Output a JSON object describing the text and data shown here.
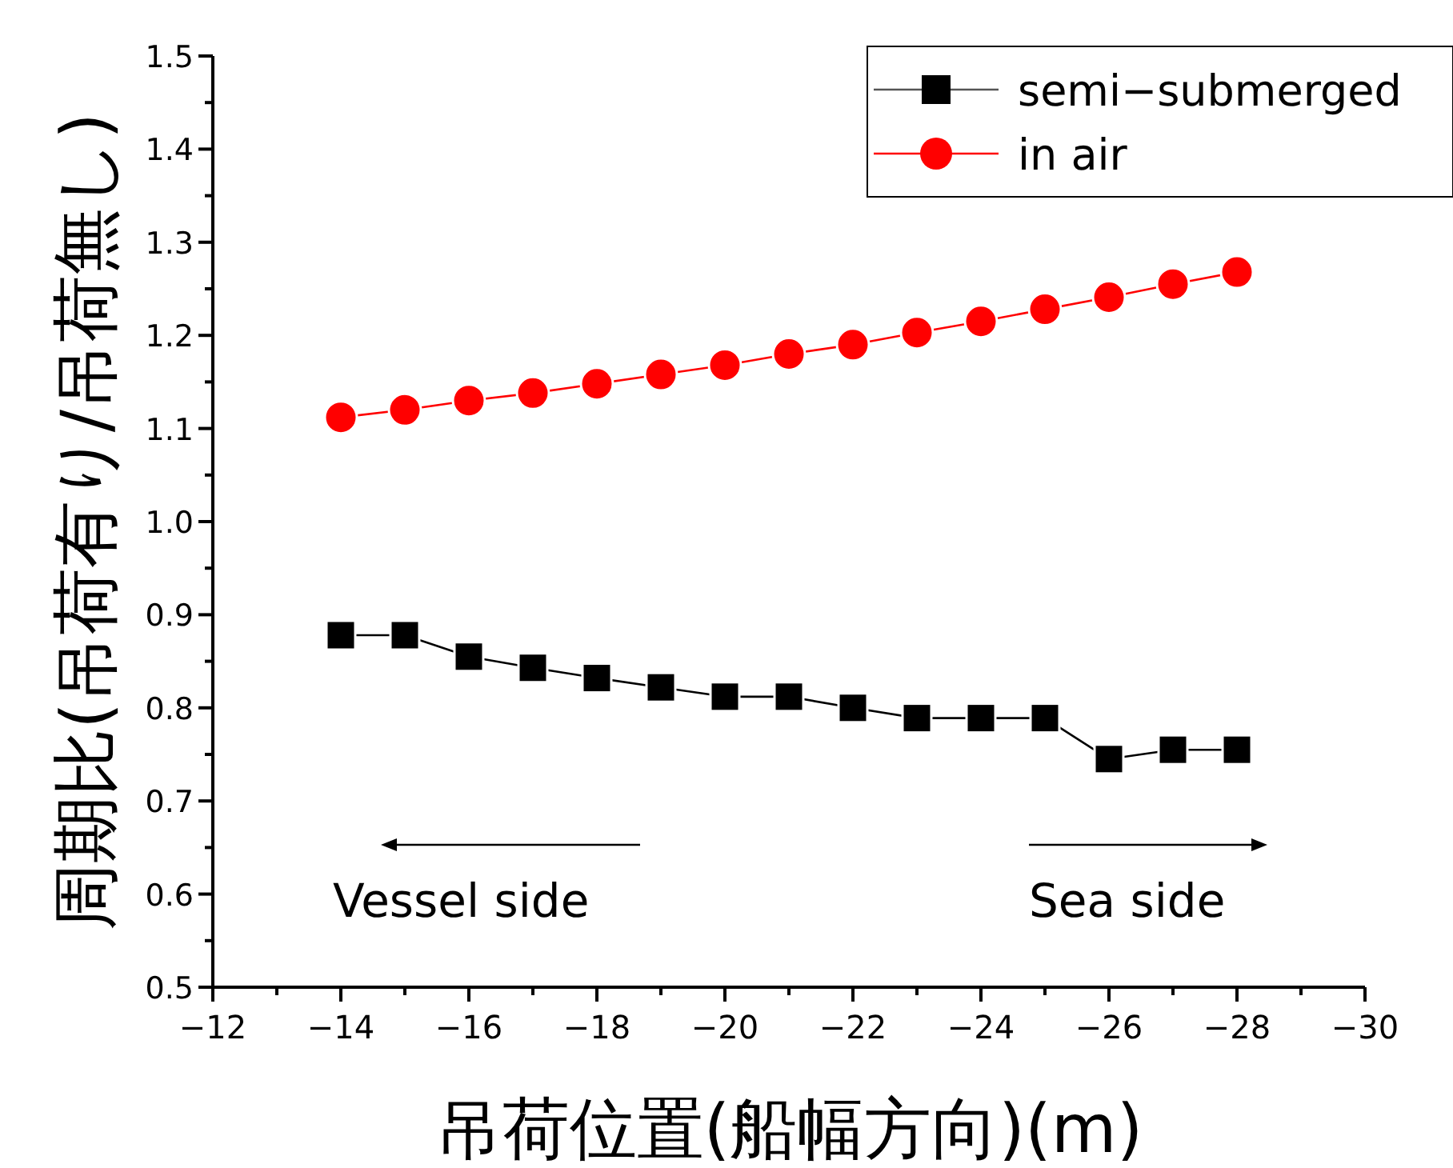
{
  "chart_data": {
    "type": "line",
    "xlabel": "吊荷位置(船幅方向)(m)",
    "ylabel": "周期比(吊荷有り/吊荷無し)",
    "x": [
      -14,
      -15,
      -16,
      -17,
      -18,
      -19,
      -20,
      -21,
      -22,
      -23,
      -24,
      -25,
      -26,
      -27,
      -28
    ],
    "series": [
      {
        "name": "semi−submerged",
        "color": "#000000",
        "marker": "square",
        "values": [
          0.878,
          0.878,
          0.855,
          0.843,
          0.832,
          0.822,
          0.812,
          0.812,
          0.8,
          0.789,
          0.789,
          0.789,
          0.745,
          0.755,
          0.755
        ]
      },
      {
        "name": "in air",
        "color": "#ff0000",
        "marker": "circle",
        "values": [
          1.112,
          1.12,
          1.13,
          1.138,
          1.148,
          1.158,
          1.168,
          1.18,
          1.19,
          1.203,
          1.215,
          1.228,
          1.241,
          1.255,
          1.268
        ]
      }
    ],
    "xlim": [
      -12,
      -30
    ],
    "xticks": [
      -12,
      {
        "value": -13,
        "label": null
      },
      -14,
      {
        "value": -15,
        "label": null
      },
      -16,
      {
        "value": -17,
        "label": null
      },
      -18,
      {
        "value": -19,
        "label": null
      },
      -20,
      {
        "value": -21,
        "label": null
      },
      -22,
      {
        "value": -23,
        "label": null
      },
      -24,
      {
        "value": -25,
        "label": null
      },
      -26,
      {
        "value": -27,
        "label": null
      },
      -28,
      {
        "value": -29,
        "label": null
      },
      -30
    ],
    "ylim": [
      0.5,
      1.5
    ],
    "yticks": [
      0.5,
      {
        "value": 0.55,
        "label": null
      },
      0.6,
      {
        "value": 0.65,
        "label": null
      },
      0.7,
      {
        "value": 0.75,
        "label": null
      },
      0.8,
      {
        "value": 0.85,
        "label": null
      },
      0.9,
      {
        "value": 0.95,
        "label": null
      },
      {
        "value": 1,
        "label": "1.0"
      },
      {
        "value": 1.05,
        "label": null
      },
      1.1,
      {
        "value": 1.15,
        "label": null
      },
      1.2,
      {
        "value": 1.25,
        "label": null
      },
      1.3,
      {
        "value": 1.35,
        "label": null
      },
      1.4,
      {
        "value": 1.45,
        "label": null
      },
      1.5
    ],
    "annotations": [
      "Vessel side",
      "Sea side"
    ],
    "legend": "top right",
    "grid": false
  }
}
